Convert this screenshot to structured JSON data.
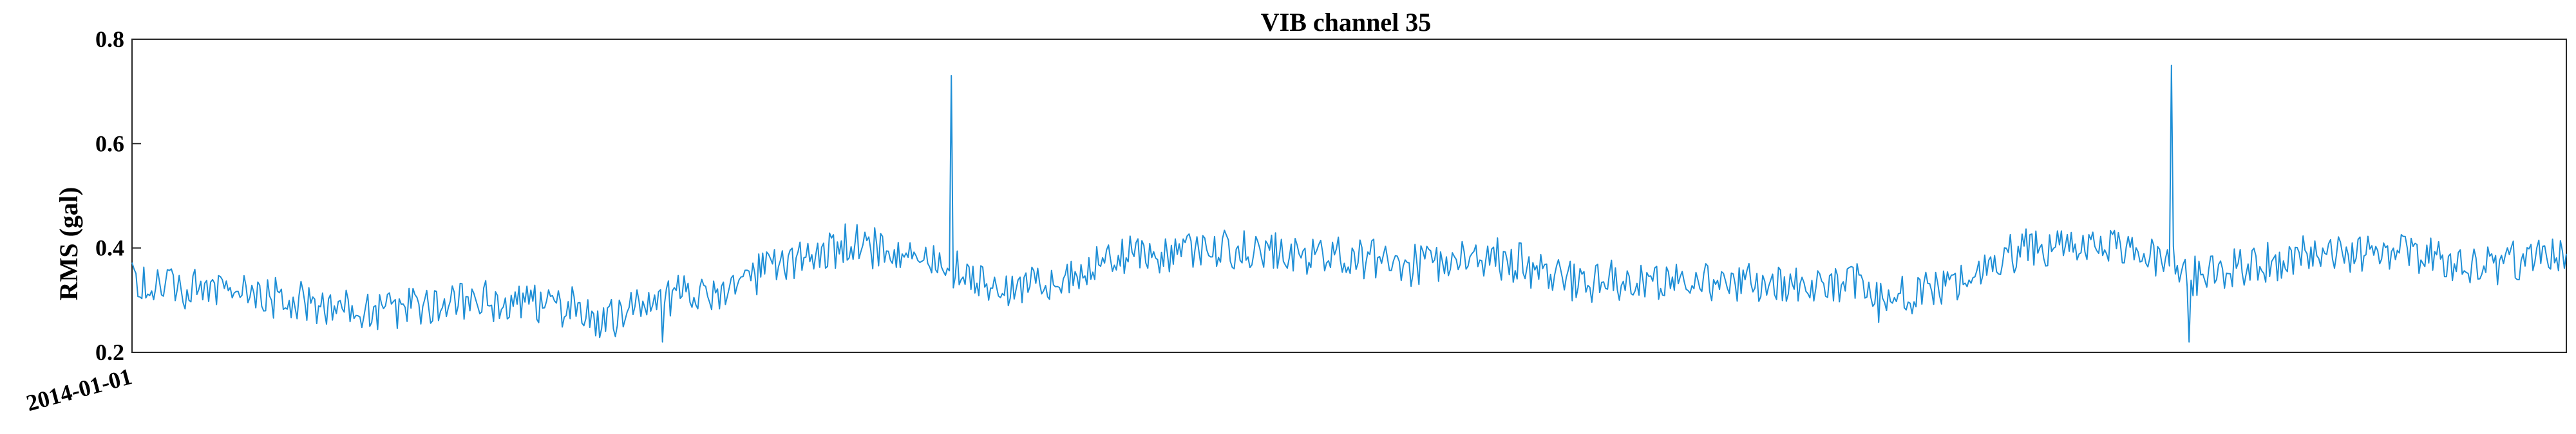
{
  "chart_data": {
    "type": "line",
    "title": "VIB channel 35",
    "xlabel": "",
    "ylabel": "RMS (gal)",
    "ylim": [
      0.2,
      0.8
    ],
    "yticks": [
      0.2,
      0.4,
      0.6,
      0.8
    ],
    "xtick_labels": [
      "2014-01-01"
    ],
    "x_start": "2014-01-01",
    "n_points": 1240,
    "grid": false,
    "legend": "none",
    "line_color": "#1f8fd6",
    "series": [
      {
        "trend_knots": [
          [
            0,
            0.33
          ],
          [
            60,
            0.31
          ],
          [
            120,
            0.28
          ],
          [
            180,
            0.3
          ],
          [
            220,
            0.29
          ],
          [
            240,
            0.265
          ],
          [
            270,
            0.305
          ],
          [
            300,
            0.31
          ],
          [
            330,
            0.37
          ],
          [
            370,
            0.41
          ],
          [
            400,
            0.375
          ],
          [
            450,
            0.32
          ],
          [
            480,
            0.345
          ],
          [
            510,
            0.395
          ],
          [
            580,
            0.4
          ],
          [
            640,
            0.37
          ],
          [
            700,
            0.38
          ],
          [
            720,
            0.345
          ],
          [
            800,
            0.33
          ],
          [
            880,
            0.33
          ],
          [
            890,
            0.29
          ],
          [
            930,
            0.335
          ],
          [
            960,
            0.4
          ],
          [
            1000,
            0.415
          ],
          [
            1050,
            0.35
          ],
          [
            1120,
            0.39
          ],
          [
            1160,
            0.39
          ],
          [
            1200,
            0.36
          ],
          [
            1239,
            0.4
          ]
        ],
        "spikes": [
          {
            "x": 417,
            "y": 0.73
          },
          {
            "x": 1038,
            "y": 0.75
          }
        ],
        "dips": [
          {
            "x": 270,
            "y": 0.22
          },
          {
            "x": 1047,
            "y": 0.22
          }
        ],
        "noise_amplitude": 0.035
      }
    ]
  }
}
